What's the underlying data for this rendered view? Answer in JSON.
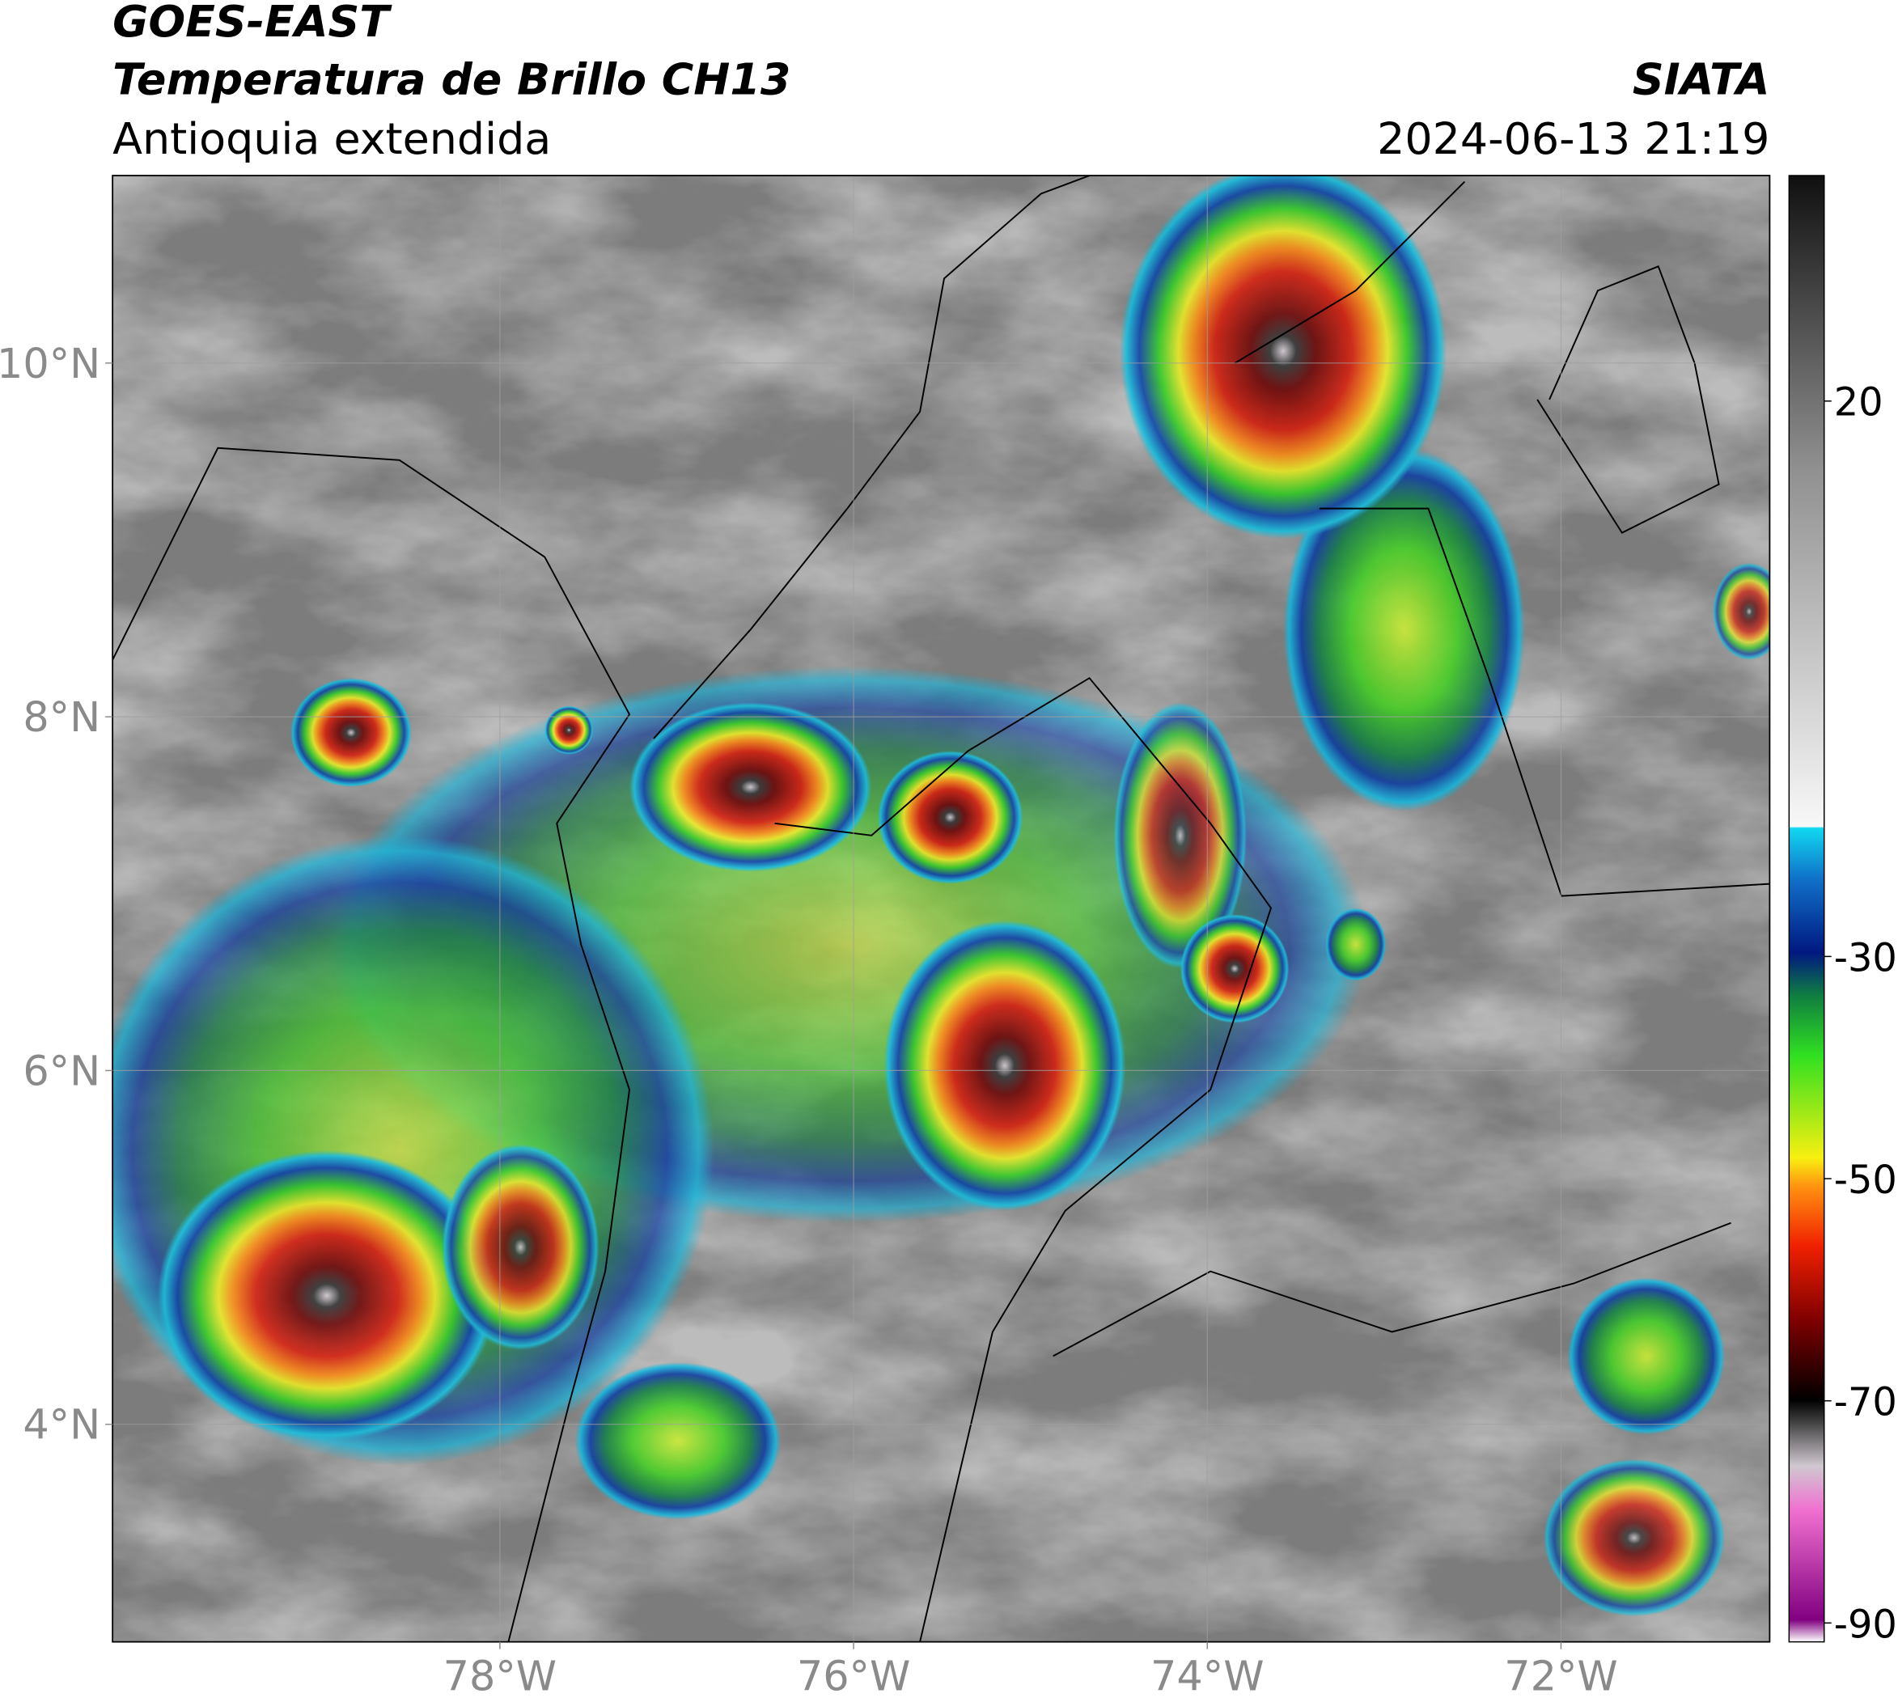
{
  "header": {
    "satellite": "GOES-EAST",
    "title": "Temperatura de Brillo CH13",
    "region": "Antioquia extendida",
    "source": "SIATA",
    "datetime": "2024-06-13 21:19"
  },
  "map": {
    "latlim": [
      2.77,
      11.06
    ],
    "lonlim": [
      -80.19,
      -70.82
    ],
    "lat_ticks": [
      {
        "value": 10,
        "label": "10°N"
      },
      {
        "value": 8,
        "label": "8°N"
      },
      {
        "value": 6,
        "label": "6°N"
      },
      {
        "value": 4,
        "label": "4°N"
      }
    ],
    "lon_ticks": [
      {
        "value": -78,
        "label": "78°W"
      },
      {
        "value": -76,
        "label": "76°W"
      },
      {
        "value": -74,
        "label": "74°W"
      },
      {
        "value": -72,
        "label": "72°W"
      }
    ],
    "grid": true
  },
  "colorbar": {
    "lim": [
      -91.7,
      40.3
    ],
    "ticks": [
      20,
      -30,
      -50,
      -70,
      -90
    ]
  }
}
